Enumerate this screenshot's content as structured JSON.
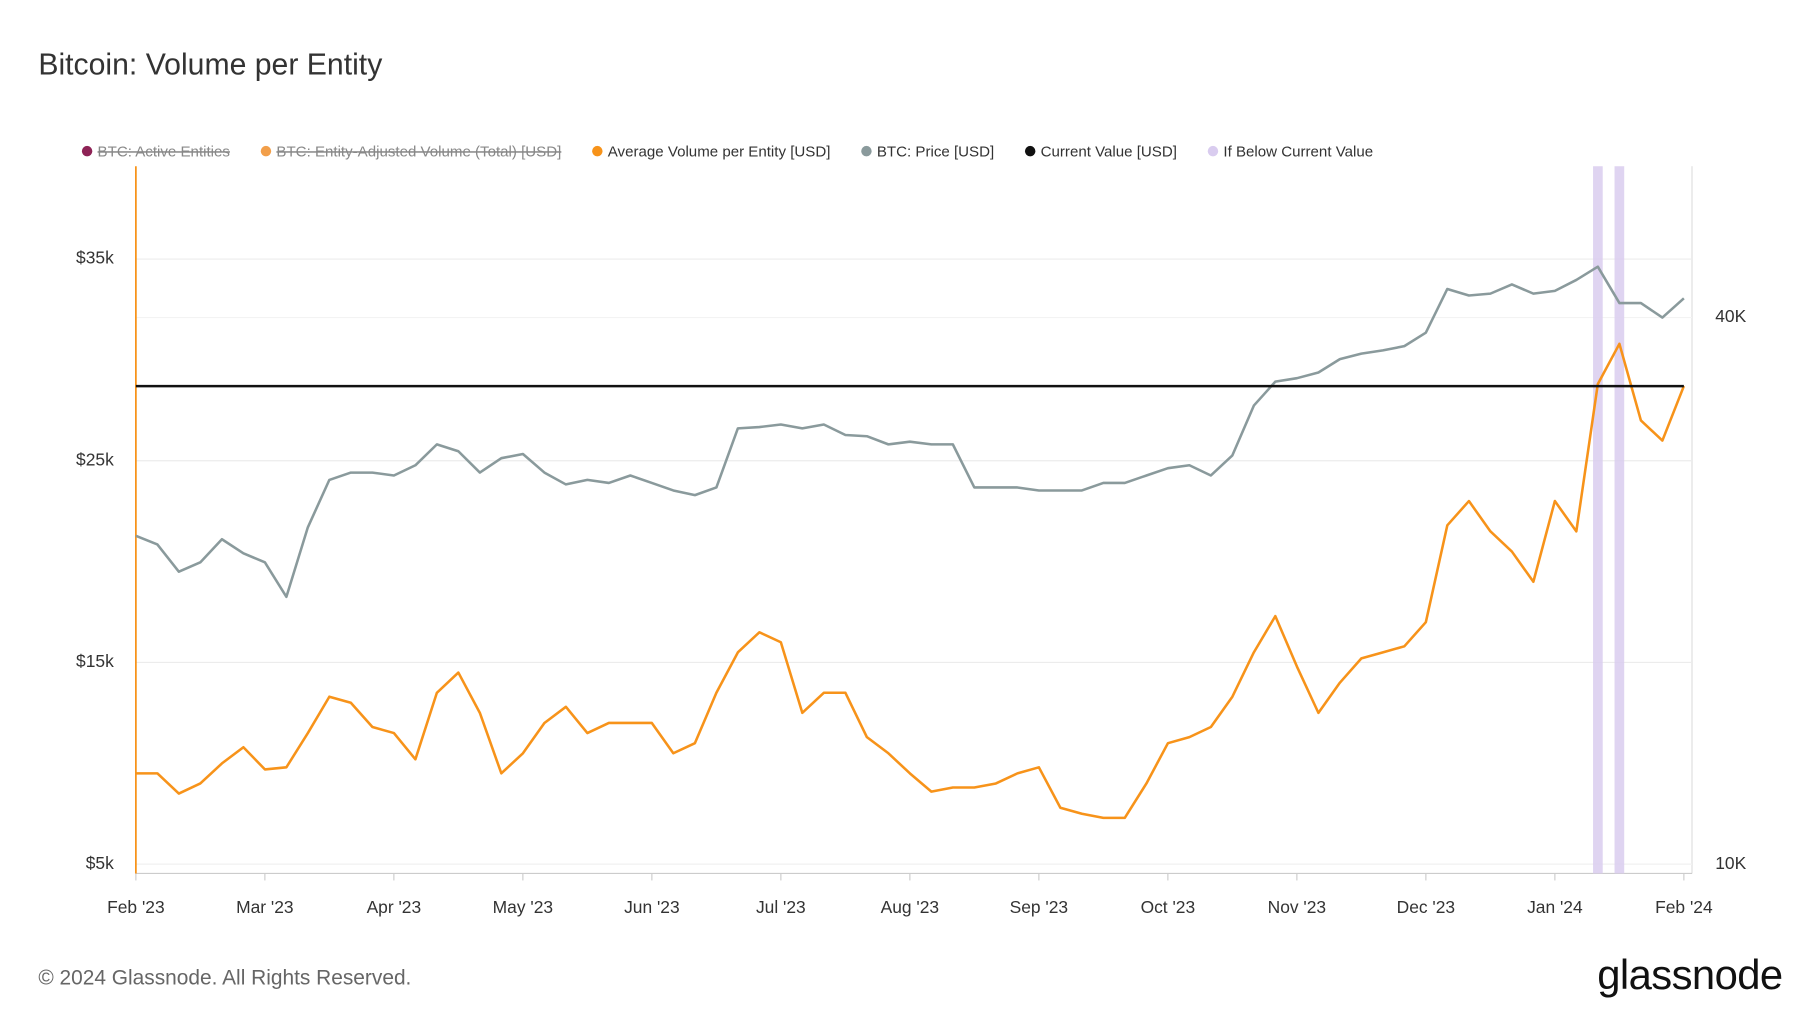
{
  "chart_data": {
    "type": "line",
    "title": "Bitcoin: Volume per Entity",
    "footer": "© 2024 Glassnode. All Rights Reserved.",
    "brand": "glassnode",
    "categories": [
      "Feb '23",
      null,
      null,
      null,
      null,
      null,
      "Mar '23",
      null,
      null,
      null,
      null,
      null,
      "Apr '23",
      null,
      null,
      null,
      null,
      null,
      "May '23",
      null,
      null,
      null,
      null,
      null,
      "Jun '23",
      null,
      null,
      null,
      null,
      null,
      "Jul '23",
      null,
      null,
      null,
      null,
      null,
      "Aug '23",
      null,
      null,
      null,
      null,
      null,
      "Sep '23",
      null,
      null,
      null,
      null,
      null,
      "Oct '23",
      null,
      null,
      null,
      null,
      null,
      "Nov '23",
      null,
      null,
      null,
      null,
      null,
      "Dec '23",
      null,
      null,
      null,
      null,
      null,
      "Jan '24",
      null,
      null,
      null,
      null,
      null,
      "Feb '24"
    ],
    "ylim": [
      4540,
      39600
    ],
    "yticks": [
      {
        "value": 5000,
        "label": "$5k"
      },
      {
        "value": 15000,
        "label": "$15k"
      },
      {
        "value": 25000,
        "label": "$25k"
      },
      {
        "value": 35000,
        "label": "$35k"
      }
    ],
    "y2lim": [
      9770,
      58700
    ],
    "y2ticks": [
      {
        "value": 10000,
        "label": "10K"
      },
      {
        "value": 40000,
        "label": "40K"
      }
    ],
    "y2log": true,
    "grid": true,
    "legend": "top",
    "series": [
      {
        "name": "BTC: Active Entities",
        "color": "#8e2356",
        "visible": false
      },
      {
        "name": "BTC: Entity-Adjusted Volume (Total) [USD]",
        "color": "#f29f4a",
        "visible": false
      },
      {
        "name": "Average Volume per Entity [USD]",
        "color": "#f7931a",
        "values": [
          9500,
          9500,
          8500,
          9000,
          10000,
          10800,
          9700,
          9800,
          11500,
          13300,
          13000,
          11800,
          11500,
          10200,
          13500,
          14500,
          12500,
          9500,
          10500,
          12000,
          12800,
          11500,
          12000,
          12000,
          12000,
          10500,
          11000,
          13500,
          15500,
          16500,
          16000,
          12500,
          13500,
          13500,
          11300,
          10500,
          9500,
          8600,
          8800,
          8800,
          9000,
          9500,
          9800,
          7800,
          7500,
          7300,
          7300,
          9000,
          11000,
          11300,
          11800,
          13300,
          15500,
          17300,
          14800,
          12500,
          14000,
          15200,
          15500,
          15800,
          17000,
          21800,
          23000,
          21500,
          20500,
          19000,
          23000,
          21500,
          28800,
          30800,
          27000,
          26000,
          28700
        ]
      },
      {
        "name": "BTC: Price [USD]",
        "color": "#8a9a9c",
        "axis": "y2",
        "values": [
          23000,
          22500,
          21000,
          21500,
          22800,
          22000,
          21500,
          19700,
          23500,
          26500,
          27000,
          27000,
          26800,
          27500,
          29000,
          28500,
          27000,
          28000,
          28300,
          27000,
          26200,
          26500,
          26300,
          26800,
          26300,
          25800,
          25500,
          26000,
          30200,
          30300,
          30500,
          30200,
          30500,
          29700,
          29600,
          29000,
          29200,
          29000,
          29000,
          26000,
          26000,
          26000,
          25800,
          25800,
          25800,
          26300,
          26300,
          26800,
          27300,
          27500,
          26800,
          28200,
          32000,
          34000,
          34300,
          34800,
          36000,
          36500,
          36800,
          37200,
          38500,
          43000,
          42300,
          42500,
          43500,
          42500,
          42800,
          44000,
          45500,
          41500,
          41500,
          40000,
          42000
        ]
      },
      {
        "name": "Current Value [USD]",
        "color": "#111111",
        "value": 28700
      },
      {
        "name": "If Below Current Value",
        "color": "#d9ccef",
        "values": [
          null,
          null,
          null,
          null,
          null,
          null,
          null,
          null,
          null,
          null,
          null,
          null,
          null,
          null,
          null,
          null,
          null,
          null,
          null,
          null,
          null,
          null,
          null,
          null,
          null,
          null,
          null,
          null,
          null,
          null,
          null,
          null,
          null,
          null,
          null,
          null,
          null,
          null,
          null,
          null,
          null,
          null,
          null,
          null,
          null,
          null,
          null,
          null,
          null,
          null,
          null,
          null,
          null,
          null,
          null,
          null,
          null,
          null,
          null,
          null,
          null,
          null,
          null,
          null,
          null,
          null,
          null,
          null,
          1,
          1,
          null,
          null,
          null
        ]
      }
    ]
  }
}
